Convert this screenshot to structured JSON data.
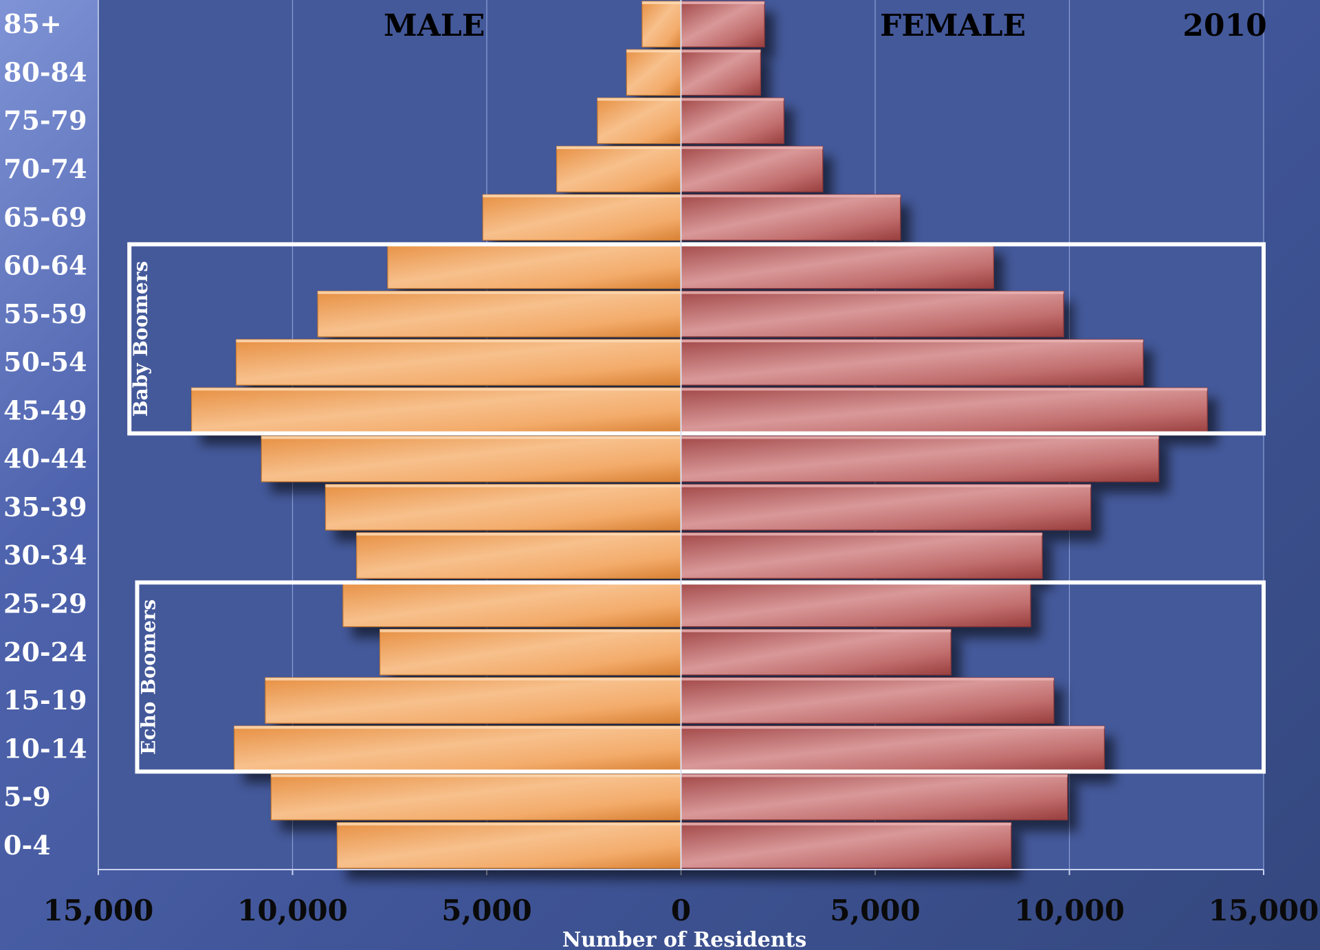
{
  "chart_data": {
    "type": "bar",
    "subtype": "population-pyramid",
    "categories": [
      "85+",
      "80-84",
      "75-79",
      "70-74",
      "65-69",
      "60-64",
      "55-59",
      "50-54",
      "45-49",
      "40-44",
      "35-39",
      "30-34",
      "25-29",
      "20-24",
      "15-19",
      "10-14",
      "5-9",
      "0-4"
    ],
    "series": [
      {
        "name": "MALE",
        "side": "left",
        "color": "#f2a45e",
        "values": [
          1000,
          1400,
          2150,
          3200,
          5100,
          7550,
          9350,
          11450,
          12600,
          10800,
          9150,
          8350,
          8700,
          7750,
          10700,
          11500,
          10550,
          8850
        ]
      },
      {
        "name": "FEMALE",
        "side": "right",
        "color": "#b95b5b",
        "values": [
          2150,
          2050,
          2650,
          3650,
          5650,
          8050,
          9850,
          11900,
          13550,
          12300,
          10550,
          9300,
          9000,
          6950,
          9600,
          10900,
          9950,
          8500
        ]
      }
    ],
    "xlabel": "Number of Residents",
    "xlim": [
      -15000,
      15000
    ],
    "xticks": [
      -15000,
      -10000,
      -5000,
      0,
      5000,
      10000,
      15000
    ],
    "xtick_labels": [
      "15,000",
      "10,000",
      "5,000",
      "0",
      "5,000",
      "10,000",
      "15,000"
    ],
    "year_label": "2010",
    "grid": true,
    "highlights": [
      {
        "label": "Baby Boomers",
        "from": "60-64",
        "to": "45-49",
        "xmin": -14200,
        "xmax": 15000
      },
      {
        "label": "Echo Boomers",
        "from": "25-29",
        "to": "10-14",
        "xmin": -14000,
        "xmax": 15000
      }
    ]
  },
  "colors": {
    "plot_bg": "#44599a",
    "grid": "#8fa0d8",
    "male": "#f2a45e",
    "female": "#b95b5b",
    "text": "#ffffff",
    "header_text": "#000000"
  }
}
